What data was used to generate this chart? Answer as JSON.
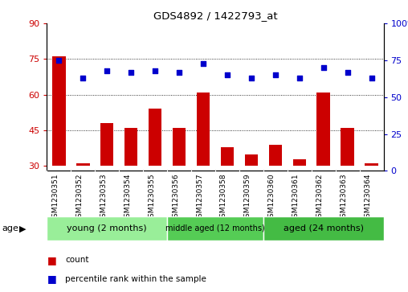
{
  "title": "GDS4892 / 1422793_at",
  "samples": [
    "GSM1230351",
    "GSM1230352",
    "GSM1230353",
    "GSM1230354",
    "GSM1230355",
    "GSM1230356",
    "GSM1230357",
    "GSM1230358",
    "GSM1230359",
    "GSM1230360",
    "GSM1230361",
    "GSM1230362",
    "GSM1230363",
    "GSM1230364"
  ],
  "count_values": [
    76,
    31,
    48,
    46,
    54,
    46,
    61,
    38,
    35,
    39,
    33,
    61,
    46,
    31
  ],
  "percentile_values": [
    75,
    63,
    68,
    67,
    68,
    67,
    73,
    65,
    63,
    65,
    63,
    70,
    67,
    63
  ],
  "ylim_left": [
    28,
    90
  ],
  "ylim_right": [
    0,
    100
  ],
  "yticks_left": [
    30,
    45,
    60,
    75,
    90
  ],
  "yticks_right": [
    0,
    25,
    50,
    75,
    100
  ],
  "bar_color": "#cc0000",
  "dot_color": "#0000cc",
  "bar_bottom": 30,
  "groups": [
    {
      "label": "young (2 months)",
      "start": 0,
      "end": 4
    },
    {
      "label": "middle aged (12 months)",
      "start": 5,
      "end": 8
    },
    {
      "label": "aged (24 months)",
      "start": 9,
      "end": 13
    }
  ],
  "group_colors": [
    "#99ee99",
    "#55cc55",
    "#44bb44"
  ],
  "legend_items": [
    {
      "label": "count",
      "color": "#cc0000"
    },
    {
      "label": "percentile rank within the sample",
      "color": "#0000cc"
    }
  ],
  "age_label": "age",
  "background_color": "#ffffff",
  "plot_bg_color": "#ffffff",
  "sample_bg_color": "#cccccc",
  "grid_yticks": [
    45,
    60,
    75
  ],
  "dot_yticks": [
    75,
    60,
    45
  ]
}
